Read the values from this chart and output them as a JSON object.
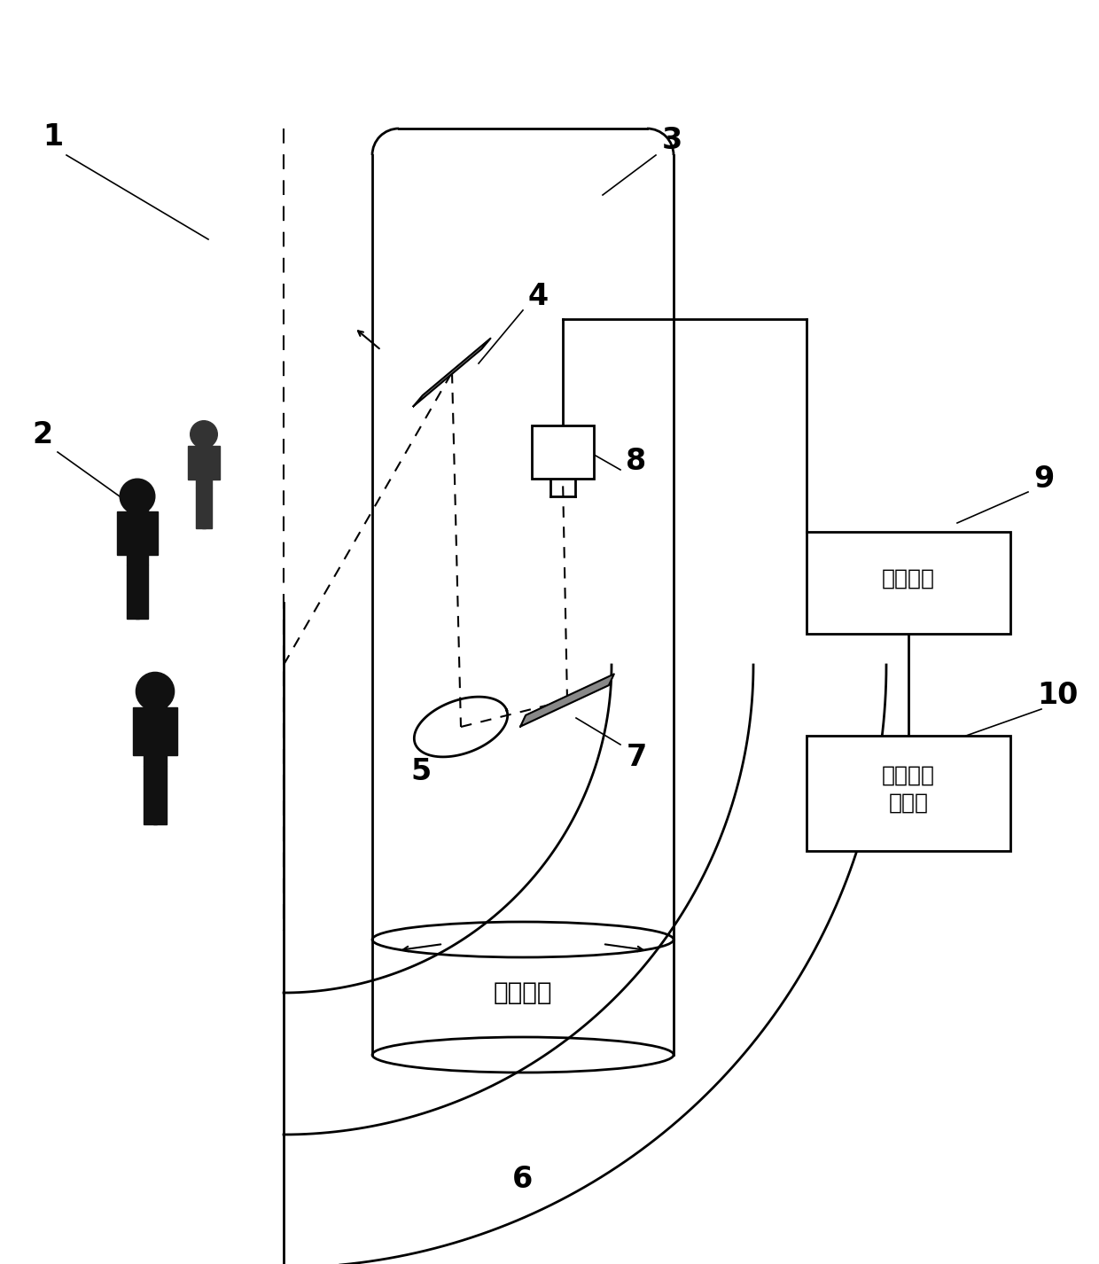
{
  "bg_color": "#ffffff",
  "line_color": "#000000",
  "label1": "1",
  "label2": "2",
  "label3": "3",
  "label4": "4",
  "label5": "5",
  "label6": "6",
  "label7": "7",
  "label8": "8",
  "label9": "9",
  "label10": "10",
  "box9_text": "采集系统",
  "box10_text": "计算机显\n控终端",
  "servo_text": "伺服系统",
  "font_size_label": 20,
  "font_size_box": 18,
  "font_size_servo": 20
}
